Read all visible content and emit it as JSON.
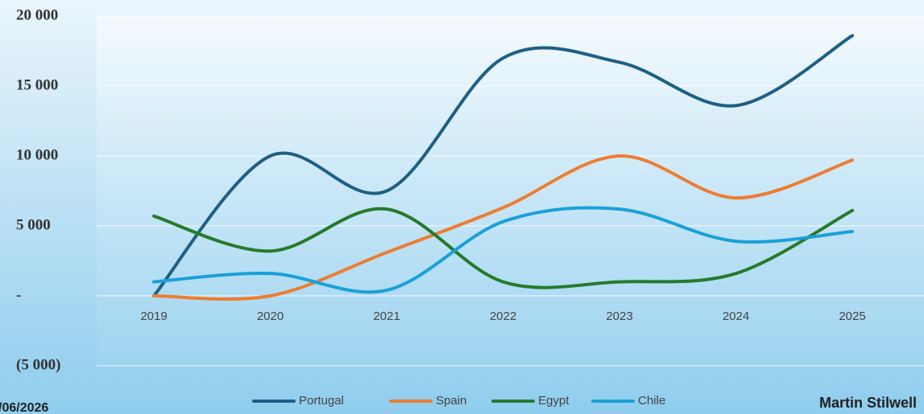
{
  "chart_data": {
    "type": "line",
    "categories": [
      "2019",
      "2020",
      "2021",
      "2022",
      "2023",
      "2024",
      "2025"
    ],
    "series": [
      {
        "name": "Portugal",
        "color": "#1f5f84",
        "values": [
          0,
          10000,
          7500,
          17000,
          16700,
          13600,
          18600
        ]
      },
      {
        "name": "Spain",
        "color": "#ed7d31",
        "values": [
          0,
          0,
          3100,
          6300,
          10000,
          7000,
          9700
        ]
      },
      {
        "name": "Egypt",
        "color": "#267a2b",
        "values": [
          5700,
          3200,
          6200,
          1000,
          1000,
          1600,
          6100
        ]
      },
      {
        "name": "Chile",
        "color": "#1aa0d8",
        "values": [
          1000,
          1600,
          400,
          5300,
          6200,
          3900,
          4600
        ]
      }
    ],
    "ylim": [
      -5000,
      20000
    ],
    "yticks": [
      {
        "value": -5000,
        "label": "(5 000)"
      },
      {
        "value": 0,
        "label": "-"
      },
      {
        "value": 5000,
        "label": "5 000"
      },
      {
        "value": 10000,
        "label": "10 000"
      },
      {
        "value": 15000,
        "label": "15 000"
      },
      {
        "value": 20000,
        "label": "20 000"
      }
    ],
    "grid": true,
    "legend": "bottom",
    "footer_left": "/06/2026",
    "footer_right": "Martin Stilwell"
  }
}
